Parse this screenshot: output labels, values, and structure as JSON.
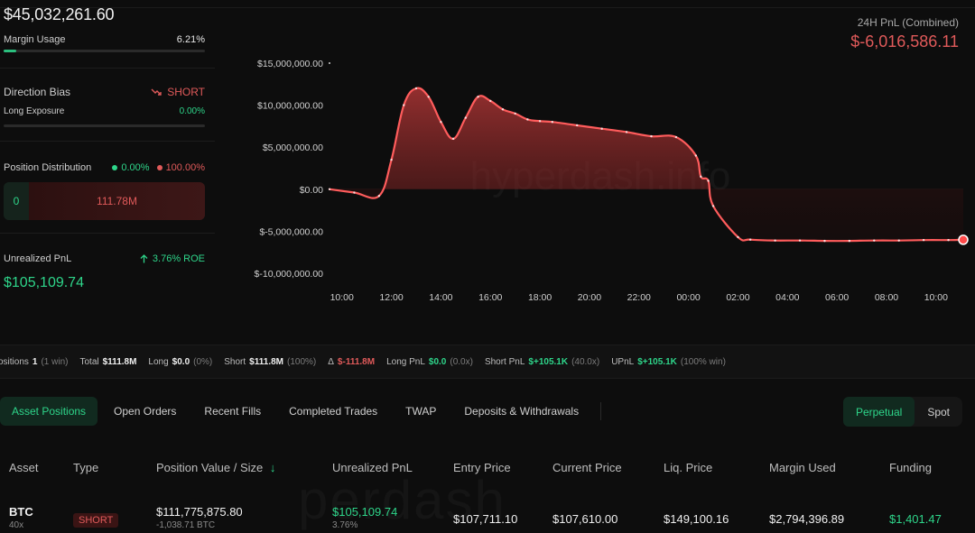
{
  "account": {
    "value": "$45,032,261.60"
  },
  "margin": {
    "label": "Margin Usage",
    "value": "6.21%",
    "fill_pct": 6.21
  },
  "direction": {
    "label": "Direction Bias",
    "value": "SHORT",
    "long_label": "Long Exposure",
    "long_value": "0.00%"
  },
  "distribution": {
    "label": "Position Distribution",
    "green_pct": "0.00%",
    "red_pct": "100.00%",
    "left_value": "0",
    "right_value": "111.78M"
  },
  "unrealized": {
    "label": "Unrealized PnL",
    "roe": "3.76% ROE",
    "value": "$105,109.74"
  },
  "pnl": {
    "label": "24H PnL (Combined)",
    "value": "$-6,016,586.11"
  },
  "watermark": "hyperdash.info",
  "colors": {
    "green": "#2ed58a",
    "red": "#e05a5a",
    "bg": "#0d0d0d"
  },
  "chart_data": {
    "type": "area",
    "title": "",
    "y_ticks": [
      "$15,000,000.00",
      "$10,000,000.00",
      "$5,000,000.00",
      "$0.00",
      "$-5,000,000.00",
      "$-10,000,000.00"
    ],
    "x_ticks": [
      "10:00",
      "12:00",
      "14:00",
      "16:00",
      "18:00",
      "20:00",
      "22:00",
      "00:00",
      "02:00",
      "04:00",
      "06:00",
      "08:00",
      "10:00"
    ],
    "ylim": [
      -10000000,
      15000000
    ],
    "xlim": [
      0,
      25.6
    ],
    "series": [
      {
        "x": [
          0,
          1,
          2,
          2.5,
          3,
          3.5,
          4,
          4.5,
          5,
          5.5,
          6,
          6.5,
          7,
          7.5,
          8,
          8.5,
          9,
          10,
          11,
          12,
          13,
          14,
          14.8,
          15,
          15.3,
          15.5,
          16.5,
          17,
          18,
          19,
          20,
          21,
          22,
          23,
          24,
          25,
          25.6
        ],
        "y": [
          0,
          -400000,
          -800000,
          3500000,
          10000000,
          12000000,
          11000000,
          8000000,
          6000000,
          8500000,
          11000000,
          10500000,
          9500000,
          9000000,
          8300000,
          8100000,
          8000000,
          7600000,
          7200000,
          6800000,
          6300000,
          6200000,
          4000000,
          1500000,
          1000000,
          -2000000,
          -5700000,
          -6000000,
          -6100000,
          -6100000,
          -6150000,
          -6150000,
          -6100000,
          -6100000,
          -6050000,
          -6050000,
          -6016586
        ]
      }
    ]
  },
  "stats": [
    {
      "label": "ositions",
      "value": "1",
      "extra": "(1 win)"
    },
    {
      "label": "Total",
      "value": "$111.8M",
      "extra": ""
    },
    {
      "label": "Long",
      "value": "$0.0",
      "extra": "(0%)"
    },
    {
      "label": "Short",
      "value": "$111.8M",
      "extra": "(100%)"
    },
    {
      "label": "Δ",
      "value": "$-111.8M",
      "extra": ""
    },
    {
      "label": "Long PnL",
      "value": "$0.0",
      "extra": "(0.0x)"
    },
    {
      "label": "Short PnL",
      "value": "$+105.1K",
      "extra": "(40.0x)"
    },
    {
      "label": "UPnL",
      "value": "$+105.1K",
      "extra": "(100% win)"
    }
  ],
  "tabs": [
    "Asset Positions",
    "Open Orders",
    "Recent Fills",
    "Completed Trades",
    "TWAP",
    "Deposits & Withdrawals"
  ],
  "market_tabs": [
    "Perpetual",
    "Spot"
  ],
  "table": {
    "headers": [
      "Asset",
      "Type",
      "Position Value / Size",
      "Unrealized PnL",
      "Entry Price",
      "Current Price",
      "Liq. Price",
      "Margin Used",
      "Funding"
    ],
    "sort_indicator": "↓",
    "row": {
      "asset": "BTC",
      "leverage": "40x",
      "type": "SHORT",
      "value": "$111,775,875.80",
      "size": "-1,038.71 BTC",
      "upnl": "$105,109.74",
      "upnl_pct": "3.76%",
      "entry": "$107,711.10",
      "current": "$107,610.00",
      "liq": "$149,100.16",
      "margin": "$2,794,396.89",
      "funding": "$1,401.47"
    }
  }
}
